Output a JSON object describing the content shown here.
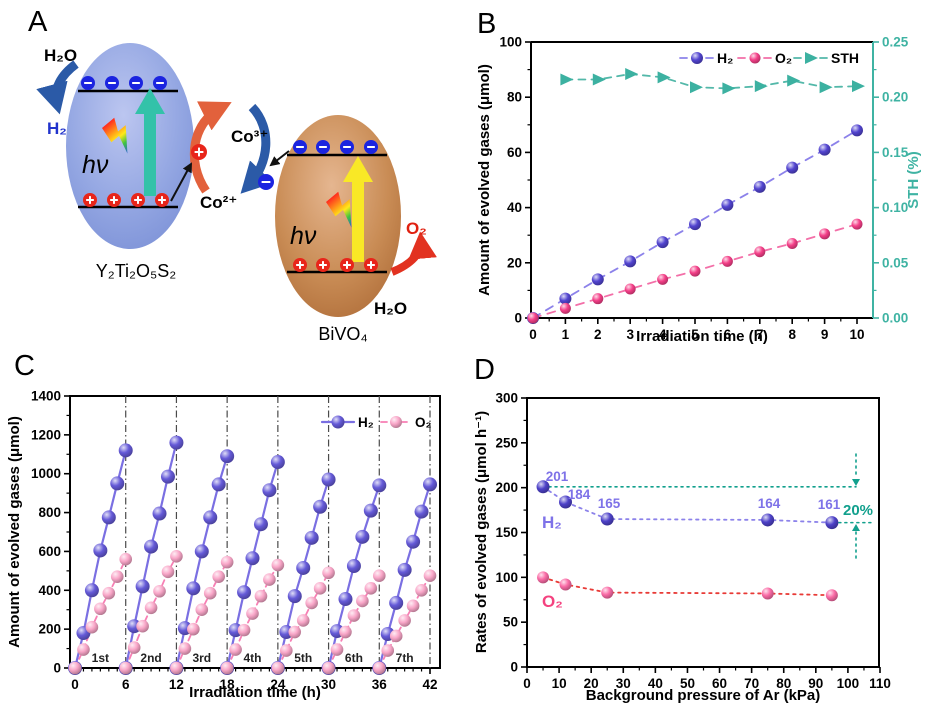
{
  "figure": {
    "background": "#ffffff",
    "panel_letters": {
      "a": "A",
      "b": "B",
      "c": "C",
      "d": "D"
    }
  },
  "panels": {
    "a": {
      "labels": {
        "h2o_in": "H₂O",
        "h2_out": "H₂",
        "hv_left": "hν",
        "co3": "Co³⁺",
        "co2": "Co²⁺",
        "hv_right": "hν",
        "o2_out": "O₂",
        "h2o_in2": "H₂O",
        "left_formula": "Y₂Ti₂O₅S₂",
        "right_formula": "BiVO₄"
      },
      "colors": {
        "left_particle": "#8ea3e0",
        "right_particle": "#c07a45",
        "electron": "#1b24e0",
        "hole": "#e8251a",
        "teal_arrow": "#33c2a9",
        "yellow_arrow": "#f9e826",
        "blue_arrow": "#2b5aa7",
        "orange_arrow": "#e2613c",
        "red_arrow": "#e23220",
        "h2_text": "#2133cc",
        "o2_text": "#e02010"
      }
    }
  },
  "chart_data": [
    {
      "id": "panel-b",
      "type": "line",
      "xlabel": "Irradiation time (h)",
      "ylabel": "Amount of evolved gases (μmol)",
      "ylabel_right": "STH (%)",
      "xlim": [
        0,
        10.5
      ],
      "ylim": [
        0,
        100
      ],
      "ylim_right": [
        0,
        0.25
      ],
      "xticks": [
        0,
        1,
        2,
        3,
        4,
        5,
        6,
        7,
        8,
        9,
        10
      ],
      "yticks": [
        0,
        20,
        40,
        60,
        80,
        100
      ],
      "yticks_right": [
        "0.00",
        "0.05",
        "0.10",
        "0.15",
        "0.20",
        "0.25"
      ],
      "grid": false,
      "legend_position": "top-right-inside",
      "series": [
        {
          "name": "H₂",
          "axis": "left",
          "marker": "sphere",
          "x": [
            0,
            1,
            2,
            3,
            4,
            5,
            6,
            7,
            8,
            9,
            10
          ],
          "values": [
            0,
            7,
            14,
            20.5,
            27.5,
            34,
            41,
            47.5,
            54.5,
            61,
            68
          ],
          "ball_color": "#5244d0",
          "line_color": "#8c82ea"
        },
        {
          "name": "O₂",
          "axis": "left",
          "marker": "sphere",
          "x": [
            0,
            1,
            2,
            3,
            4,
            5,
            6,
            7,
            8,
            9,
            10
          ],
          "values": [
            0,
            3.5,
            7,
            10.5,
            14,
            17,
            20.5,
            24,
            27,
            30.5,
            34
          ],
          "ball_color": "#f43f88",
          "line_color": "#f36fa8"
        },
        {
          "name": "STH",
          "axis": "right",
          "marker": "triangle",
          "x": [
            1,
            2,
            3,
            4,
            5,
            6,
            7,
            8,
            9,
            10
          ],
          "values": [
            0.216,
            0.216,
            0.221,
            0.218,
            0.209,
            0.208,
            0.21,
            0.215,
            0.209,
            0.21
          ],
          "ball_color": "#3cb1a1",
          "line_color": "#53b8a9"
        }
      ],
      "axis_color_right": "#3fb3a3"
    },
    {
      "id": "panel-c",
      "type": "line",
      "xlabel": "Irradiation time (h)",
      "ylabel": "Amount of evolved gases (μmol)",
      "xlim": [
        0,
        43
      ],
      "ylim": [
        0,
        1400
      ],
      "xticks": [
        0,
        6,
        12,
        18,
        24,
        30,
        36,
        42
      ],
      "yticks": [
        0,
        200,
        400,
        600,
        800,
        1000,
        1200,
        1400
      ],
      "dividers": [
        6,
        12,
        18,
        24,
        30,
        36,
        42
      ],
      "grid": false,
      "legend": [
        "H₂",
        "O₂"
      ],
      "h2_ball_color": "#655ad8",
      "h2_line_color": "#7a6fe2",
      "o2_ball_color": "#f9a6c8",
      "o2_line_color": "#f77fb4",
      "cycles": [
        {
          "label": "1st",
          "start": 0,
          "h2": [
            0,
            180,
            400,
            605,
            775,
            950,
            1120
          ],
          "o2": [
            0,
            95,
            210,
            305,
            385,
            470,
            560
          ]
        },
        {
          "label": "2nd",
          "start": 6,
          "h2": [
            0,
            215,
            420,
            625,
            795,
            985,
            1160
          ],
          "o2": [
            0,
            105,
            215,
            310,
            395,
            495,
            575
          ]
        },
        {
          "label": "3rd",
          "start": 12,
          "h2": [
            0,
            205,
            410,
            600,
            775,
            945,
            1090
          ],
          "o2": [
            0,
            100,
            200,
            300,
            385,
            470,
            545
          ]
        },
        {
          "label": "4th",
          "start": 18,
          "h2": [
            0,
            195,
            390,
            565,
            740,
            915,
            1060
          ],
          "o2": [
            0,
            95,
            195,
            280,
            370,
            455,
            530
          ]
        },
        {
          "label": "5th",
          "start": 24,
          "h2": [
            0,
            185,
            370,
            515,
            670,
            830,
            970
          ],
          "o2": [
            0,
            90,
            185,
            245,
            335,
            410,
            490
          ]
        },
        {
          "label": "6th",
          "start": 30,
          "h2": [
            0,
            190,
            355,
            525,
            675,
            810,
            940
          ],
          "o2": [
            0,
            95,
            185,
            270,
            345,
            410,
            475
          ]
        },
        {
          "label": "7th",
          "start": 36,
          "h2": [
            0,
            175,
            335,
            505,
            650,
            805,
            945
          ],
          "o2": [
            0,
            90,
            165,
            245,
            320,
            400,
            475
          ]
        }
      ]
    },
    {
      "id": "panel-d",
      "type": "scatter",
      "xlabel": "Background pressure of Ar (kPa)",
      "ylabel": "Rates of evolved gases (μmol h⁻¹)",
      "xlim": [
        0,
        110
      ],
      "ylim": [
        0,
        300
      ],
      "xticks": [
        0,
        10,
        20,
        30,
        40,
        50,
        60,
        70,
        80,
        90,
        100,
        110
      ],
      "yticks": [
        0,
        50,
        100,
        150,
        200,
        250,
        300
      ],
      "grid": false,
      "series": [
        {
          "name": "H₂",
          "x": [
            5,
            12,
            25,
            75,
            95
          ],
          "values": [
            201,
            184,
            165,
            164,
            161
          ],
          "point_labels": [
            "201",
            "184",
            "165",
            "164",
            "161"
          ],
          "ball_color": "#4d41c8",
          "line_color": "#8c82ea",
          "label_color": "#7e72e8"
        },
        {
          "name": "O₂",
          "x": [
            5,
            12,
            25,
            75,
            95
          ],
          "values": [
            100,
            92,
            83,
            82,
            80
          ],
          "point_labels": [],
          "ball_color": "#fa6ba6",
          "line_color": "#e83a36",
          "label_color": "#f4427f"
        }
      ],
      "annotation": {
        "label": "20%",
        "upper_value": 201,
        "lower_value": 161,
        "color": "#12a08d"
      }
    }
  ]
}
